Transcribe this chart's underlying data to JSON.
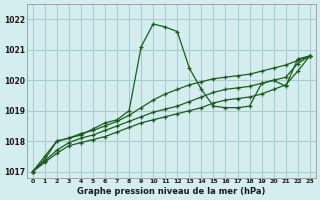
{
  "title": "Graphe pression niveau de la mer (hPa)",
  "bg_color": "#d4eef0",
  "grid_color": "#aacccc",
  "line_color": "#1a5c1a",
  "xlim": [
    -0.5,
    23.5
  ],
  "ylim": [
    1016.8,
    1022.5
  ],
  "yticks": [
    1017,
    1018,
    1019,
    1020,
    1021,
    1022
  ],
  "xticks": [
    0,
    1,
    2,
    3,
    4,
    5,
    6,
    7,
    8,
    9,
    10,
    11,
    12,
    13,
    14,
    15,
    16,
    17,
    18,
    19,
    20,
    21,
    22,
    23
  ],
  "series": [
    [
      1017.0,
      1017.5,
      1018.0,
      1018.1,
      1018.2,
      1018.4,
      1018.6,
      1018.7,
      1019.0,
      1021.1,
      1021.85,
      1021.75,
      1021.6,
      1020.4,
      1019.7,
      1019.15,
      1019.1,
      1019.1,
      1019.15,
      1019.9,
      1020.0,
      1019.8,
      1020.7,
      1020.8
    ],
    [
      1017.0,
      1017.4,
      1018.0,
      1018.1,
      1018.25,
      1018.35,
      1018.5,
      1018.65,
      1018.85,
      1019.1,
      1019.35,
      1019.55,
      1019.7,
      1019.85,
      1019.95,
      1020.05,
      1020.1,
      1020.15,
      1020.2,
      1020.3,
      1020.4,
      1020.5,
      1020.65,
      1020.8
    ],
    [
      1017.0,
      1017.35,
      1017.7,
      1017.95,
      1018.1,
      1018.2,
      1018.35,
      1018.5,
      1018.65,
      1018.8,
      1018.95,
      1019.05,
      1019.15,
      1019.3,
      1019.45,
      1019.6,
      1019.7,
      1019.75,
      1019.8,
      1019.9,
      1020.0,
      1020.1,
      1020.55,
      1020.8
    ],
    [
      1017.0,
      1017.3,
      1017.6,
      1017.85,
      1017.95,
      1018.05,
      1018.15,
      1018.3,
      1018.45,
      1018.6,
      1018.7,
      1018.8,
      1018.9,
      1019.0,
      1019.1,
      1019.25,
      1019.35,
      1019.4,
      1019.45,
      1019.55,
      1019.7,
      1019.85,
      1020.3,
      1020.8
    ]
  ]
}
